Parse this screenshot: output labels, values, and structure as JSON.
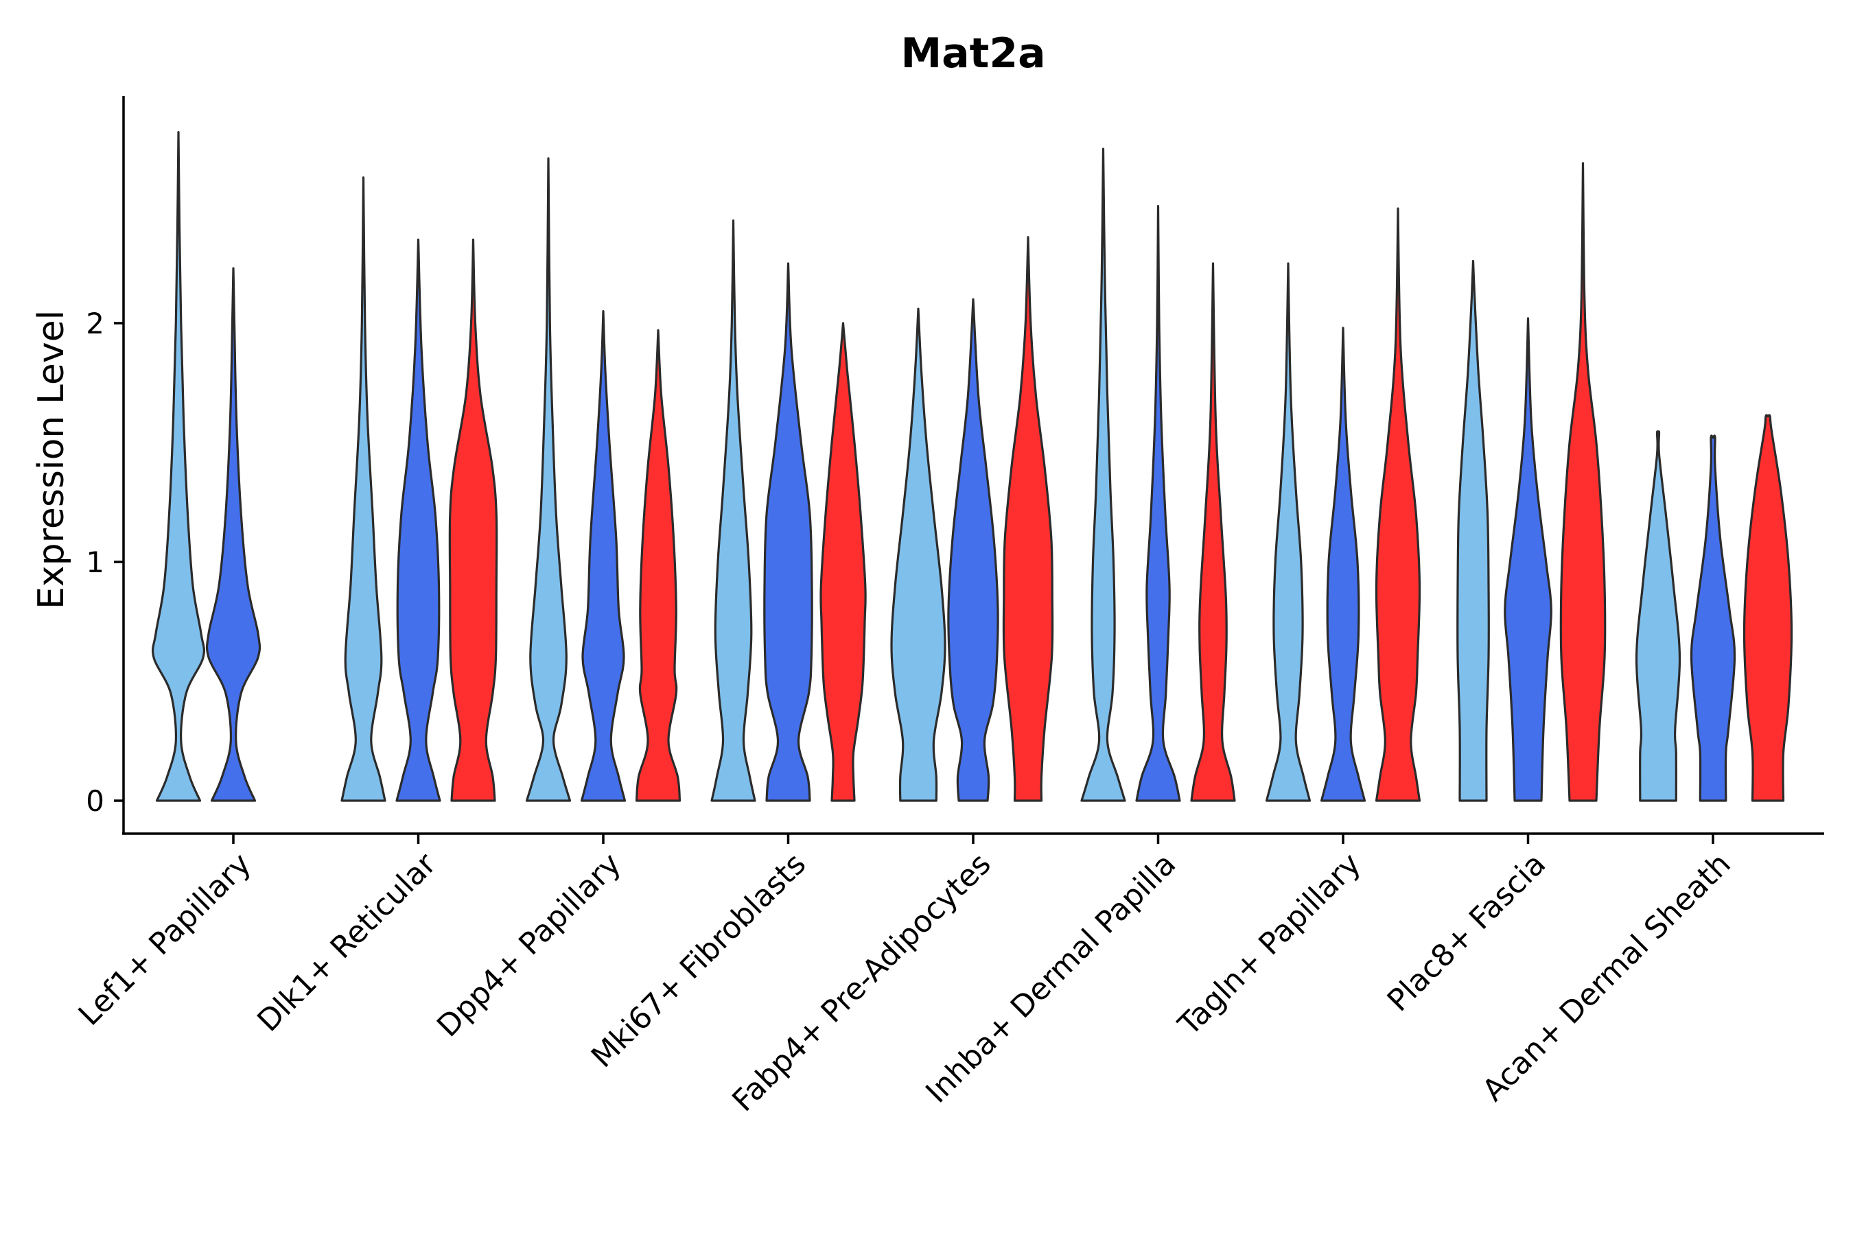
{
  "chart_data": {
    "type": "violin",
    "title": "Mat2a",
    "xlabel": "",
    "ylabel": "Expression Level",
    "ylim": [
      -0.14,
      2.95
    ],
    "yticks": [
      0,
      1,
      2
    ],
    "grid": false,
    "categories": [
      "Lef1+ Papillary",
      "Dlk1+ Reticular",
      "Dpp4+ Papillary",
      "Mki67+ Fibroblasts",
      "Fabp4+ Pre-Adipocytes",
      "Inhba+ Dermal Papilla",
      "Tagln+ Papillary",
      "Plac8+ Fascia",
      "Acan+ Dermal Sheath"
    ],
    "series": [
      {
        "name": "group-light-blue",
        "color": "#7fbfec"
      },
      {
        "name": "group-blue",
        "color": "#4470eb"
      },
      {
        "name": "group-red",
        "color": "#ff2f2f"
      }
    ],
    "violins": [
      {
        "category": 0,
        "series": 0,
        "max": 2.8,
        "profile": [
          [
            0,
            0.42
          ],
          [
            0.1,
            0.22
          ],
          [
            0.25,
            0.05
          ],
          [
            0.45,
            0.15
          ],
          [
            0.6,
            0.48
          ],
          [
            0.7,
            0.44
          ],
          [
            0.9,
            0.28
          ],
          [
            1.2,
            0.18
          ],
          [
            1.6,
            0.1
          ],
          [
            2.0,
            0.05
          ],
          [
            2.4,
            0.02
          ],
          [
            2.8,
            0
          ]
        ]
      },
      {
        "category": 0,
        "series": 1,
        "max": 2.23,
        "profile": [
          [
            0,
            0.42
          ],
          [
            0.1,
            0.22
          ],
          [
            0.25,
            0.05
          ],
          [
            0.45,
            0.15
          ],
          [
            0.6,
            0.48
          ],
          [
            0.7,
            0.48
          ],
          [
            0.9,
            0.28
          ],
          [
            1.2,
            0.15
          ],
          [
            1.6,
            0.06
          ],
          [
            2.0,
            0.02
          ],
          [
            2.23,
            0
          ]
        ]
      },
      {
        "category": 1,
        "series": 0,
        "max": 2.61,
        "profile": [
          [
            0,
            0.42
          ],
          [
            0.1,
            0.32
          ],
          [
            0.25,
            0.15
          ],
          [
            0.45,
            0.28
          ],
          [
            0.6,
            0.35
          ],
          [
            0.9,
            0.25
          ],
          [
            1.2,
            0.18
          ],
          [
            1.6,
            0.08
          ],
          [
            2.0,
            0.03
          ],
          [
            2.61,
            0
          ]
        ]
      },
      {
        "category": 1,
        "series": 1,
        "max": 2.35,
        "profile": [
          [
            0,
            0.42
          ],
          [
            0.1,
            0.3
          ],
          [
            0.25,
            0.15
          ],
          [
            0.45,
            0.28
          ],
          [
            0.6,
            0.38
          ],
          [
            0.9,
            0.4
          ],
          [
            1.2,
            0.33
          ],
          [
            1.5,
            0.18
          ],
          [
            1.9,
            0.06
          ],
          [
            2.35,
            0
          ]
        ]
      },
      {
        "category": 1,
        "series": 2,
        "max": 2.35,
        "profile": [
          [
            0,
            0.42
          ],
          [
            0.1,
            0.38
          ],
          [
            0.25,
            0.25
          ],
          [
            0.45,
            0.38
          ],
          [
            0.6,
            0.44
          ],
          [
            0.9,
            0.45
          ],
          [
            1.2,
            0.45
          ],
          [
            1.4,
            0.37
          ],
          [
            1.7,
            0.14
          ],
          [
            2.0,
            0.04
          ],
          [
            2.35,
            0
          ]
        ]
      },
      {
        "category": 2,
        "series": 0,
        "max": 2.69,
        "profile": [
          [
            0,
            0.42
          ],
          [
            0.1,
            0.28
          ],
          [
            0.25,
            0.1
          ],
          [
            0.4,
            0.25
          ],
          [
            0.6,
            0.35
          ],
          [
            0.9,
            0.25
          ],
          [
            1.2,
            0.15
          ],
          [
            1.6,
            0.08
          ],
          [
            2.0,
            0.03
          ],
          [
            2.69,
            0
          ]
        ]
      },
      {
        "category": 2,
        "series": 1,
        "max": 2.05,
        "profile": [
          [
            0,
            0.42
          ],
          [
            0.1,
            0.3
          ],
          [
            0.25,
            0.15
          ],
          [
            0.45,
            0.28
          ],
          [
            0.6,
            0.4
          ],
          [
            0.8,
            0.3
          ],
          [
            1.1,
            0.25
          ],
          [
            1.5,
            0.12
          ],
          [
            1.8,
            0.04
          ],
          [
            2.05,
            0
          ]
        ]
      },
      {
        "category": 2,
        "series": 2,
        "max": 1.97,
        "profile": [
          [
            0,
            0.42
          ],
          [
            0.1,
            0.38
          ],
          [
            0.25,
            0.2
          ],
          [
            0.45,
            0.35
          ],
          [
            0.55,
            0.32
          ],
          [
            0.8,
            0.35
          ],
          [
            1.1,
            0.3
          ],
          [
            1.4,
            0.2
          ],
          [
            1.7,
            0.06
          ],
          [
            1.97,
            0
          ]
        ]
      },
      {
        "category": 3,
        "series": 0,
        "max": 2.43,
        "profile": [
          [
            0,
            0.42
          ],
          [
            0.1,
            0.32
          ],
          [
            0.25,
            0.2
          ],
          [
            0.45,
            0.28
          ],
          [
            0.7,
            0.35
          ],
          [
            1.0,
            0.3
          ],
          [
            1.3,
            0.2
          ],
          [
            1.7,
            0.08
          ],
          [
            2.0,
            0.03
          ],
          [
            2.43,
            0
          ]
        ]
      },
      {
        "category": 3,
        "series": 1,
        "max": 2.25,
        "profile": [
          [
            0,
            0.42
          ],
          [
            0.1,
            0.38
          ],
          [
            0.25,
            0.2
          ],
          [
            0.45,
            0.4
          ],
          [
            0.6,
            0.45
          ],
          [
            0.9,
            0.46
          ],
          [
            1.2,
            0.42
          ],
          [
            1.5,
            0.25
          ],
          [
            1.9,
            0.06
          ],
          [
            2.25,
            0
          ]
        ]
      },
      {
        "category": 3,
        "series": 2,
        "max": 2.0,
        "profile": [
          [
            0,
            0.22
          ],
          [
            0.1,
            0.2
          ],
          [
            0.2,
            0.2
          ],
          [
            0.35,
            0.3
          ],
          [
            0.5,
            0.38
          ],
          [
            0.75,
            0.42
          ],
          [
            0.9,
            0.43
          ],
          [
            1.2,
            0.34
          ],
          [
            1.5,
            0.22
          ],
          [
            1.8,
            0.08
          ],
          [
            2.0,
            0
          ]
        ]
      },
      {
        "category": 4,
        "series": 0,
        "max": 2.06,
        "profile": [
          [
            0,
            0.35
          ],
          [
            0.1,
            0.35
          ],
          [
            0.25,
            0.3
          ],
          [
            0.45,
            0.45
          ],
          [
            0.65,
            0.52
          ],
          [
            0.9,
            0.45
          ],
          [
            1.2,
            0.3
          ],
          [
            1.5,
            0.16
          ],
          [
            1.8,
            0.06
          ],
          [
            2.06,
            0
          ]
        ]
      },
      {
        "category": 4,
        "series": 1,
        "max": 2.1,
        "profile": [
          [
            0,
            0.28
          ],
          [
            0.1,
            0.3
          ],
          [
            0.25,
            0.22
          ],
          [
            0.4,
            0.38
          ],
          [
            0.55,
            0.45
          ],
          [
            0.8,
            0.48
          ],
          [
            1.1,
            0.4
          ],
          [
            1.4,
            0.25
          ],
          [
            1.7,
            0.1
          ],
          [
            2.1,
            0
          ]
        ]
      },
      {
        "category": 4,
        "series": 2,
        "max": 2.36,
        "profile": [
          [
            0,
            0.26
          ],
          [
            0.1,
            0.26
          ],
          [
            0.3,
            0.32
          ],
          [
            0.6,
            0.46
          ],
          [
            0.85,
            0.47
          ],
          [
            1.1,
            0.45
          ],
          [
            1.4,
            0.32
          ],
          [
            1.7,
            0.15
          ],
          [
            2.0,
            0.05
          ],
          [
            2.36,
            0
          ]
        ]
      },
      {
        "category": 5,
        "series": 0,
        "max": 2.73,
        "profile": [
          [
            0,
            0.42
          ],
          [
            0.1,
            0.28
          ],
          [
            0.25,
            0.08
          ],
          [
            0.45,
            0.18
          ],
          [
            0.7,
            0.22
          ],
          [
            1.0,
            0.2
          ],
          [
            1.3,
            0.14
          ],
          [
            1.7,
            0.08
          ],
          [
            2.2,
            0.03
          ],
          [
            2.73,
            0
          ]
        ]
      },
      {
        "category": 5,
        "series": 1,
        "max": 2.49,
        "profile": [
          [
            0,
            0.42
          ],
          [
            0.1,
            0.32
          ],
          [
            0.25,
            0.1
          ],
          [
            0.45,
            0.15
          ],
          [
            0.7,
            0.2
          ],
          [
            0.9,
            0.22
          ],
          [
            1.2,
            0.14
          ],
          [
            1.6,
            0.06
          ],
          [
            2.0,
            0.02
          ],
          [
            2.49,
            0
          ]
        ]
      },
      {
        "category": 5,
        "series": 2,
        "max": 2.25,
        "profile": [
          [
            0,
            0.42
          ],
          [
            0.1,
            0.35
          ],
          [
            0.25,
            0.18
          ],
          [
            0.45,
            0.22
          ],
          [
            0.65,
            0.26
          ],
          [
            0.85,
            0.25
          ],
          [
            1.2,
            0.15
          ],
          [
            1.6,
            0.05
          ],
          [
            2.25,
            0
          ]
        ]
      },
      {
        "category": 6,
        "series": 0,
        "max": 2.25,
        "profile": [
          [
            0,
            0.42
          ],
          [
            0.1,
            0.3
          ],
          [
            0.25,
            0.15
          ],
          [
            0.45,
            0.22
          ],
          [
            0.7,
            0.28
          ],
          [
            1.0,
            0.25
          ],
          [
            1.3,
            0.15
          ],
          [
            1.7,
            0.05
          ],
          [
            2.25,
            0
          ]
        ]
      },
      {
        "category": 6,
        "series": 1,
        "max": 1.98,
        "profile": [
          [
            0,
            0.42
          ],
          [
            0.1,
            0.3
          ],
          [
            0.25,
            0.15
          ],
          [
            0.45,
            0.22
          ],
          [
            0.7,
            0.3
          ],
          [
            1.0,
            0.28
          ],
          [
            1.3,
            0.15
          ],
          [
            1.6,
            0.05
          ],
          [
            1.98,
            0
          ]
        ]
      },
      {
        "category": 6,
        "series": 2,
        "max": 2.48,
        "profile": [
          [
            0,
            0.42
          ],
          [
            0.1,
            0.35
          ],
          [
            0.25,
            0.25
          ],
          [
            0.45,
            0.35
          ],
          [
            0.6,
            0.38
          ],
          [
            0.9,
            0.42
          ],
          [
            1.2,
            0.35
          ],
          [
            1.5,
            0.2
          ],
          [
            1.9,
            0.05
          ],
          [
            2.48,
            0
          ]
        ]
      },
      {
        "category": 7,
        "series": 0,
        "max": 2.26,
        "profile": [
          [
            0,
            0.26
          ],
          [
            0.3,
            0.26
          ],
          [
            0.6,
            0.3
          ],
          [
            0.9,
            0.3
          ],
          [
            1.2,
            0.28
          ],
          [
            1.5,
            0.2
          ],
          [
            1.8,
            0.1
          ],
          [
            2.1,
            0.03
          ],
          [
            2.26,
            0
          ]
        ]
      },
      {
        "category": 7,
        "series": 1,
        "max": 2.02,
        "profile": [
          [
            0,
            0.26
          ],
          [
            0.3,
            0.3
          ],
          [
            0.6,
            0.38
          ],
          [
            0.8,
            0.45
          ],
          [
            1.0,
            0.35
          ],
          [
            1.3,
            0.18
          ],
          [
            1.6,
            0.06
          ],
          [
            2.02,
            0
          ]
        ]
      },
      {
        "category": 7,
        "series": 2,
        "max": 2.67,
        "profile": [
          [
            0,
            0.26
          ],
          [
            0.3,
            0.32
          ],
          [
            0.6,
            0.42
          ],
          [
            0.9,
            0.42
          ],
          [
            1.2,
            0.36
          ],
          [
            1.5,
            0.26
          ],
          [
            1.8,
            0.1
          ],
          [
            2.1,
            0.03
          ],
          [
            2.67,
            0
          ]
        ]
      },
      {
        "category": 8,
        "series": 0,
        "max": 1.54,
        "profile": [
          [
            0,
            0.35
          ],
          [
            0.2,
            0.35
          ],
          [
            0.3,
            0.33
          ],
          [
            0.6,
            0.42
          ],
          [
            0.9,
            0.3
          ],
          [
            1.2,
            0.15
          ],
          [
            1.45,
            0.02
          ],
          [
            1.54,
            0.02
          ],
          [
            1.54,
            0
          ]
        ]
      },
      {
        "category": 8,
        "series": 1,
        "max": 1.52,
        "profile": [
          [
            0,
            0.25
          ],
          [
            0.2,
            0.25
          ],
          [
            0.3,
            0.3
          ],
          [
            0.6,
            0.42
          ],
          [
            0.8,
            0.32
          ],
          [
            1.1,
            0.14
          ],
          [
            1.4,
            0.04
          ],
          [
            1.52,
            0.04
          ],
          [
            1.52,
            0
          ]
        ]
      },
      {
        "category": 8,
        "series": 2,
        "max": 1.61,
        "profile": [
          [
            0,
            0.3
          ],
          [
            0.2,
            0.3
          ],
          [
            0.4,
            0.4
          ],
          [
            0.7,
            0.46
          ],
          [
            1.0,
            0.4
          ],
          [
            1.3,
            0.25
          ],
          [
            1.55,
            0.07
          ],
          [
            1.61,
            0.04
          ],
          [
            1.61,
            0
          ]
        ]
      }
    ]
  }
}
